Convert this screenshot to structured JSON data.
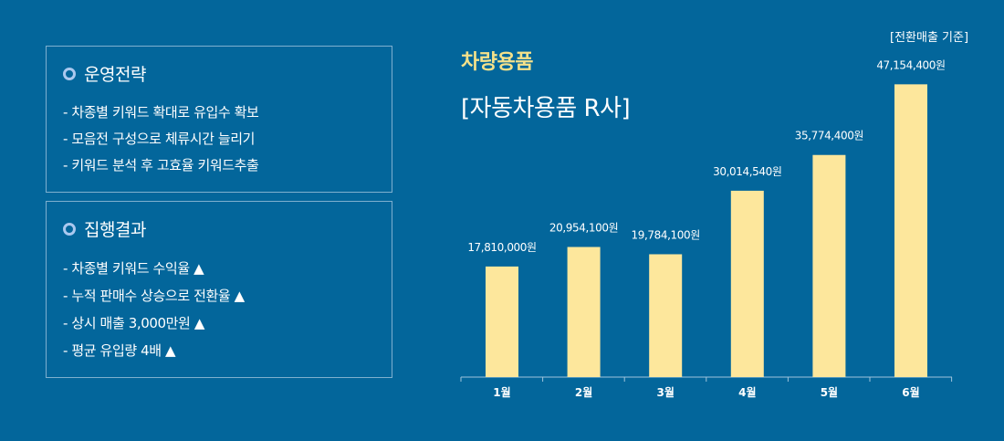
{
  "strategy": {
    "title": "운영전략",
    "items": [
      "- 차종별 키워드 확대로 유입수 확보",
      "- 모음전 구성으로 체류시간 늘리기",
      "- 키워드 분석 후 고효율 키워드추출"
    ]
  },
  "results": {
    "title": "집행결과",
    "items": [
      "- 차종별 키워드 수익율 ▲",
      "- 누적 판매수 상승으로 전환율 ▲",
      "- 상시 매출 3,000만원 ▲",
      "- 평균 유입량 4배 ▲"
    ]
  },
  "chart_header": {
    "title": "차량용품",
    "subtitle": "[자동차용품 R사]",
    "note": "[전환매출 기준]"
  },
  "colors": {
    "background": "#03669b",
    "bar": "#fde79c",
    "title_accent": "#f5e18a"
  },
  "chart_data": {
    "type": "bar",
    "categories": [
      "1월",
      "2월",
      "3월",
      "4월",
      "5월",
      "6월"
    ],
    "values": [
      17810000,
      20954100,
      19784100,
      30014540,
      35774400,
      47154400
    ],
    "data_labels": [
      "17,810,000원",
      "20,954,100원",
      "19,784,100원",
      "30,014,540원",
      "35,774,400원",
      "47,154,400원"
    ],
    "title": "차량용품",
    "subtitle": "[자동차용품 R사]",
    "annotation": "[전환매출 기준]",
    "xlabel": "",
    "ylabel": "",
    "ylim": [
      0,
      50000000
    ],
    "grid": false,
    "legend": "none"
  }
}
